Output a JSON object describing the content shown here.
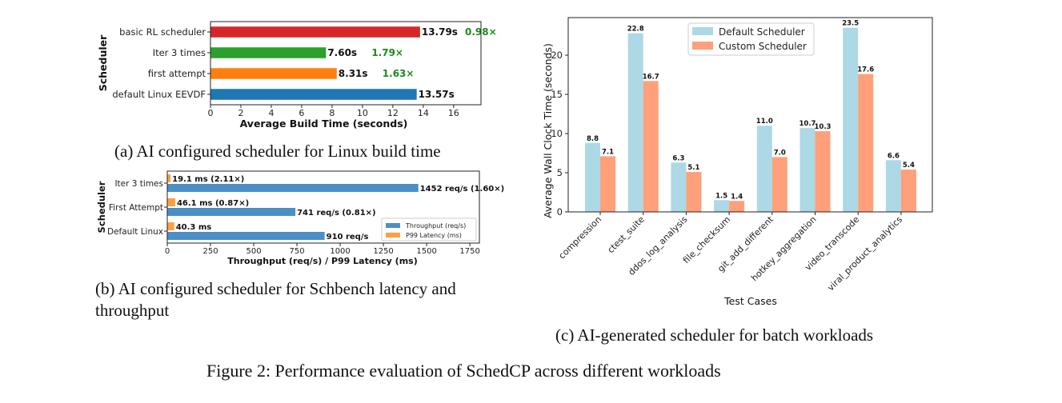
{
  "figure_caption": "Figure 2: Performance evaluation of SchedCP across different workloads",
  "captions": {
    "a": "(a) AI configured scheduler for Linux build time",
    "b_line1": "(b) AI configured scheduler for Schbench latency and",
    "b_line2": "throughput",
    "c": "(c) AI-generated scheduler for batch workloads"
  },
  "chart_data": [
    {
      "id": "a",
      "type": "bar",
      "orientation": "horizontal",
      "title": "",
      "xlabel": "Average Build Time (seconds)",
      "ylabel": "Scheduler",
      "xlim": [
        0,
        17.8
      ],
      "xticks": [
        "0",
        "2",
        "4",
        "6",
        "8",
        "10",
        "12",
        "14",
        "16"
      ],
      "xtick_values": [
        0,
        2,
        4,
        6,
        8,
        10,
        12,
        14,
        16
      ],
      "categories": [
        "basic RL scheduler",
        "Iter 3 times",
        "first attempt",
        "default Linux EEVDF"
      ],
      "values": [
        13.79,
        7.6,
        8.31,
        13.57
      ],
      "value_labels": [
        "13.79s",
        "7.60s",
        "8.31s",
        "13.57s"
      ],
      "speedup_labels": [
        "0.98×",
        "1.79×",
        "1.63×",
        ""
      ],
      "colors": [
        "#d62728",
        "#2ca02c",
        "#ff7f0e",
        "#1f77b4"
      ],
      "speedup_color": "#1a8a1a",
      "grid": false,
      "legend": null
    },
    {
      "id": "b",
      "type": "bar",
      "orientation": "horizontal",
      "title": "",
      "xlabel": "Throughput (req/s) / P99 Latency (ms)",
      "ylabel": "Scheduler",
      "xlim": [
        0,
        1805
      ],
      "xticks": [
        "0",
        "250",
        "500",
        "750",
        "1000",
        "1250",
        "1500",
        "1750"
      ],
      "xtick_values": [
        0,
        250,
        500,
        750,
        1000,
        1250,
        1500,
        1750
      ],
      "categories": [
        "Iter 3 times",
        "First Attempt",
        "Default Linux"
      ],
      "series": [
        {
          "name": "Throughput (req/s)",
          "color": "#4a90c4",
          "values": [
            1452,
            741,
            910
          ],
          "labels": [
            "1452 req/s (1.60×)",
            "741 req/s (0.81×)",
            "910 req/s"
          ]
        },
        {
          "name": "P99 Latency (ms)",
          "color": "#ff9f40",
          "values": [
            19.1,
            46.1,
            40.3
          ],
          "labels": [
            "19.1 ms (2.11×)",
            "46.1 ms (0.87×)",
            "40.3 ms"
          ]
        }
      ],
      "grid": false,
      "legend": "bottom-right"
    },
    {
      "id": "c",
      "type": "bar",
      "orientation": "vertical",
      "title": "",
      "xlabel": "Test Cases",
      "ylabel": "Average Wall Clock Time (seconds)",
      "ylim": [
        0,
        24.8
      ],
      "yticks": [
        "0",
        "5",
        "10",
        "15",
        "20"
      ],
      "ytick_values": [
        0,
        5,
        10,
        15,
        20
      ],
      "categories": [
        "compression",
        "ctest_suite",
        "ddos_log_analysis",
        "file_checksum",
        "git_add_different",
        "hotkey_aggregation",
        "video_transcode",
        "viral_product_analytics"
      ],
      "series": [
        {
          "name": "Default Scheduler",
          "color": "#add8e6",
          "values": [
            8.8,
            22.8,
            6.3,
            1.5,
            11.0,
            10.7,
            23.5,
            6.6
          ],
          "labels": [
            "8.8",
            "22.8",
            "6.3",
            "1.5",
            "11.0",
            "10.7",
            "23.5",
            "6.6"
          ]
        },
        {
          "name": "Custom Scheduler",
          "color": "#ffa07a",
          "values": [
            7.1,
            16.7,
            5.1,
            1.4,
            7.0,
            10.3,
            17.6,
            5.4
          ],
          "labels": [
            "7.1",
            "16.7",
            "5.1",
            "1.4",
            "7.0",
            "10.3",
            "17.6",
            "5.4"
          ]
        }
      ],
      "grid": false,
      "legend": "top-center"
    }
  ]
}
